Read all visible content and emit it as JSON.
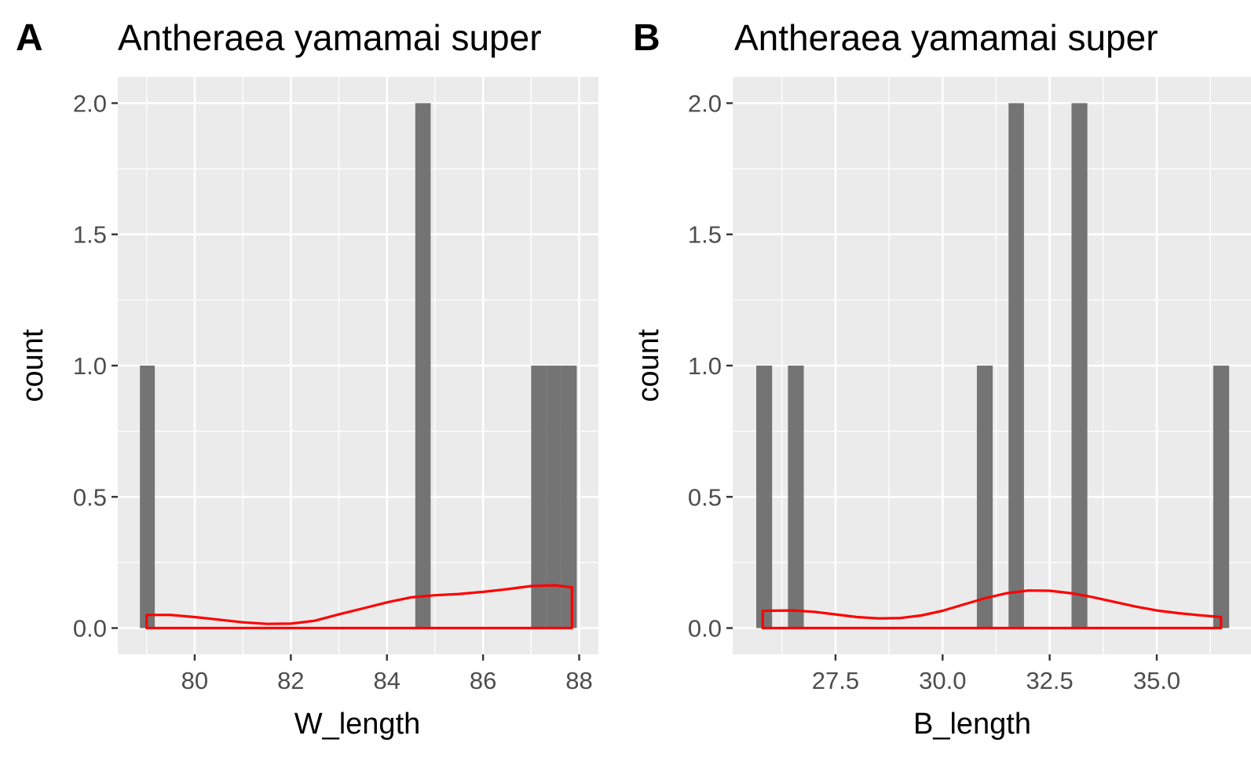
{
  "chart_data": [
    {
      "type": "bar",
      "panel": "A",
      "title": "Antheraea yamamai super",
      "xlabel": "W_length",
      "ylabel": "count",
      "xlim": [
        78.4,
        88.4
      ],
      "ylim": [
        -0.1,
        2.1
      ],
      "xticks": [
        80,
        82,
        84,
        86,
        88
      ],
      "xtick_labels": [
        "80",
        "82",
        "84",
        "86",
        "88"
      ],
      "yticks": [
        0,
        0.5,
        1,
        1.5,
        2
      ],
      "ytick_labels": [
        "0.0",
        "0.5",
        "1.0",
        "1.5",
        "2.0"
      ],
      "bar_color": "#747474",
      "background": "#ebebeb",
      "grid": true,
      "bars": [
        {
          "x0": 78.86,
          "x1": 79.17,
          "count": 1
        },
        {
          "x0": 84.59,
          "x1": 84.91,
          "count": 2
        },
        {
          "x0": 87.0,
          "x1": 87.32,
          "count": 1
        },
        {
          "x0": 87.32,
          "x1": 87.63,
          "count": 1
        },
        {
          "x0": 87.63,
          "x1": 87.95,
          "count": 1
        }
      ],
      "density": {
        "color": "#ff0000",
        "x": [
          79.0,
          79.5,
          80.0,
          80.5,
          81.0,
          81.5,
          82.0,
          82.5,
          83.0,
          83.5,
          84.0,
          84.5,
          85.0,
          85.5,
          86.0,
          86.5,
          87.0,
          87.5,
          87.85
        ],
        "y": [
          0.05,
          0.05,
          0.042,
          0.032,
          0.022,
          0.016,
          0.017,
          0.028,
          0.052,
          0.075,
          0.098,
          0.117,
          0.125,
          0.13,
          0.138,
          0.148,
          0.16,
          0.163,
          0.155
        ]
      }
    },
    {
      "type": "bar",
      "panel": "B",
      "title": "Antheraea yamamai super",
      "xlabel": "B_length",
      "ylabel": "count",
      "xlim": [
        25.1,
        37.2
      ],
      "ylim": [
        -0.1,
        2.1
      ],
      "xticks": [
        27.5,
        30.0,
        32.5,
        35.0
      ],
      "xtick_labels": [
        "27.5",
        "30.0",
        "32.5",
        "35.0"
      ],
      "yticks": [
        0,
        0.5,
        1,
        1.5,
        2
      ],
      "ytick_labels": [
        "0.0",
        "0.5",
        "1.0",
        "1.5",
        "2.0"
      ],
      "bar_color": "#747474",
      "background": "#ebebeb",
      "grid": true,
      "bars": [
        {
          "x0": 25.65,
          "x1": 26.02,
          "count": 1
        },
        {
          "x0": 26.39,
          "x1": 26.76,
          "count": 1
        },
        {
          "x0": 30.8,
          "x1": 31.17,
          "count": 1
        },
        {
          "x0": 31.54,
          "x1": 31.9,
          "count": 2
        },
        {
          "x0": 33.01,
          "x1": 33.38,
          "count": 2
        },
        {
          "x0": 36.32,
          "x1": 36.69,
          "count": 1
        }
      ],
      "density": {
        "color": "#ff0000",
        "x": [
          25.8,
          26.5,
          27.0,
          27.5,
          28.0,
          28.5,
          29.0,
          29.5,
          30.0,
          30.5,
          31.0,
          31.5,
          32.0,
          32.5,
          33.0,
          33.5,
          34.0,
          34.5,
          35.0,
          35.5,
          36.0,
          36.5
        ],
        "y": [
          0.066,
          0.067,
          0.062,
          0.052,
          0.042,
          0.037,
          0.038,
          0.048,
          0.066,
          0.09,
          0.114,
          0.133,
          0.143,
          0.142,
          0.133,
          0.118,
          0.1,
          0.082,
          0.067,
          0.057,
          0.049,
          0.042
        ]
      }
    }
  ]
}
